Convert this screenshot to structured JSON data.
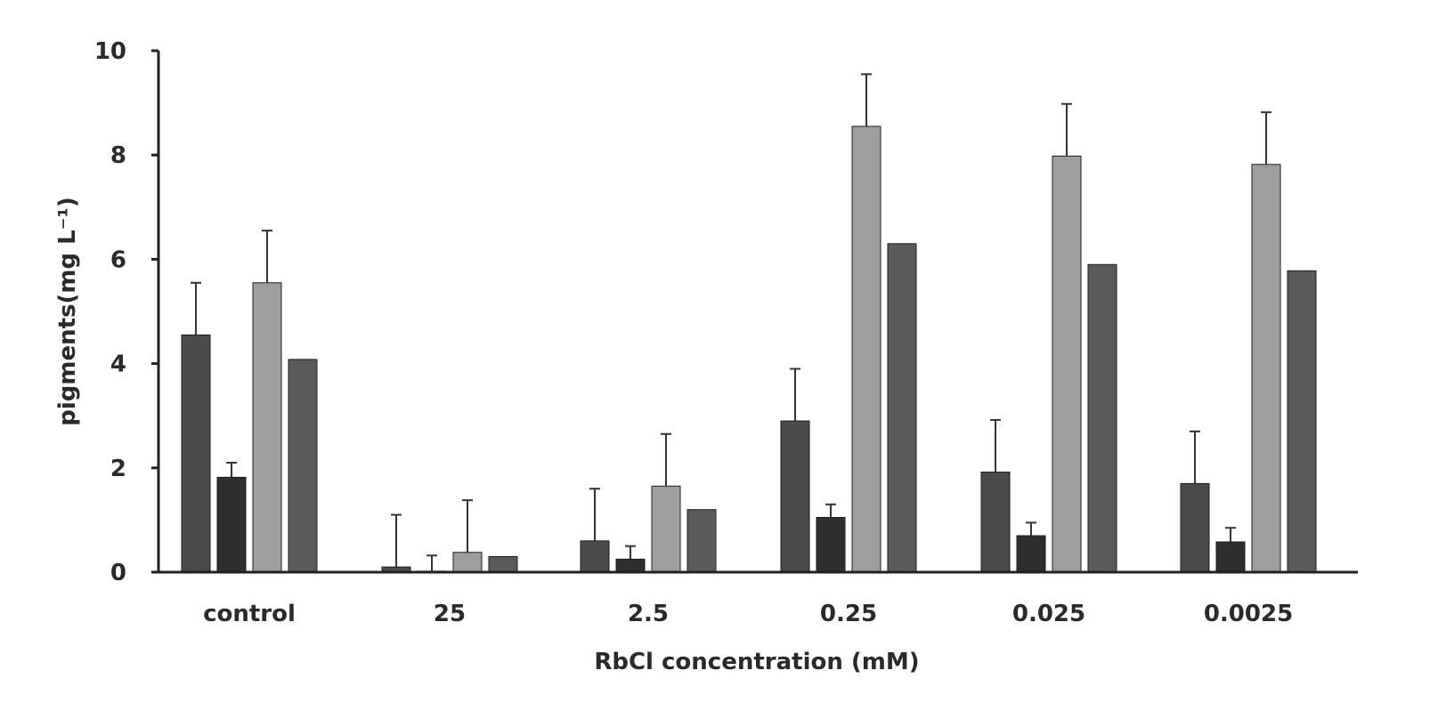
{
  "chart_data": {
    "type": "bar",
    "title": "",
    "xlabel": "RbCl concentration (mM)",
    "ylabel": "pigments(mg L⁻¹)",
    "categories": [
      "control",
      "25",
      "2.5",
      "0.25",
      "0.025",
      "0.0025"
    ],
    "ylim": [
      0,
      10
    ],
    "yticks": [
      0,
      2,
      4,
      6,
      8,
      10
    ],
    "grid": false,
    "legend": "none",
    "series": [
      {
        "values": [
          4.55,
          0.1,
          0.6,
          2.9,
          1.92,
          1.7
        ],
        "errors": [
          1.0,
          1.0,
          1.0,
          1.0,
          1.0,
          1.0
        ],
        "color": "#4a4a4a"
      },
      {
        "values": [
          1.82,
          0.02,
          0.25,
          1.05,
          0.7,
          0.58
        ],
        "errors": [
          0.28,
          0.3,
          0.25,
          0.25,
          0.25,
          0.27
        ],
        "color": "#2e2e2e"
      },
      {
        "values": [
          5.55,
          0.38,
          1.65,
          8.55,
          7.98,
          7.82
        ],
        "errors": [
          1.0,
          1.0,
          1.0,
          1.0,
          1.0,
          1.0
        ],
        "color": "#9e9e9e"
      },
      {
        "values": [
          4.08,
          0.3,
          1.2,
          6.3,
          5.9,
          5.78
        ],
        "errors": [
          0,
          0,
          0,
          0,
          0,
          0
        ],
        "color": "#5a5a5a"
      }
    ]
  }
}
